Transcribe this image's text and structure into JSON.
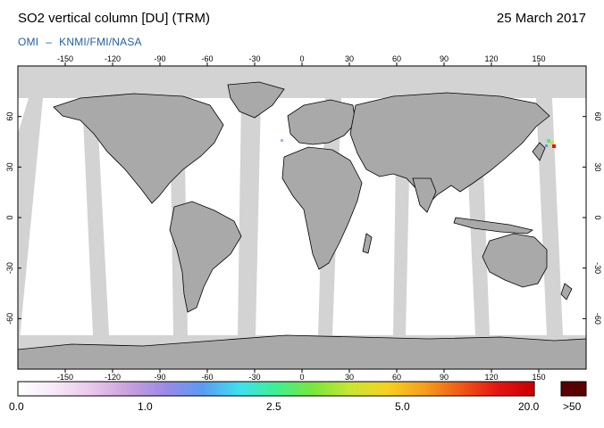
{
  "header": {
    "title": "SO2 vertical column [DU] (TRM)",
    "date": "25 March 2017",
    "credit_a": "OMI",
    "credit_sep": "–",
    "credit_b": "KNMI/FMI/NASA"
  },
  "map": {
    "lon_ticks": [
      "-150",
      "-120",
      "-90",
      "-60",
      "-30",
      "0",
      "30",
      "60",
      "90",
      "120",
      "150"
    ],
    "lat_ticks": [
      "60",
      "30",
      "0",
      "-30",
      "-60"
    ],
    "colors": {
      "ocean": "#ffffff",
      "swath_gap": "#d3d3d3",
      "land_dark": "#a9a9a9",
      "coast": "#000000"
    }
  },
  "colorbar": {
    "labels": [
      "0.0",
      "1.0",
      "2.5",
      "5.0",
      "20.0"
    ],
    "overflow_label": ">50",
    "overflow_color": "#5a0000",
    "gradient": [
      "#ffffff",
      "#f6e9f6",
      "#e9c8ec",
      "#c9a0dc",
      "#9a8ae6",
      "#5a9bf2",
      "#3fe0f0",
      "#3ff090",
      "#7ae63c",
      "#c8e632",
      "#f5d21e",
      "#f5a01e",
      "#f05a14",
      "#e61414",
      "#c80000"
    ]
  }
}
